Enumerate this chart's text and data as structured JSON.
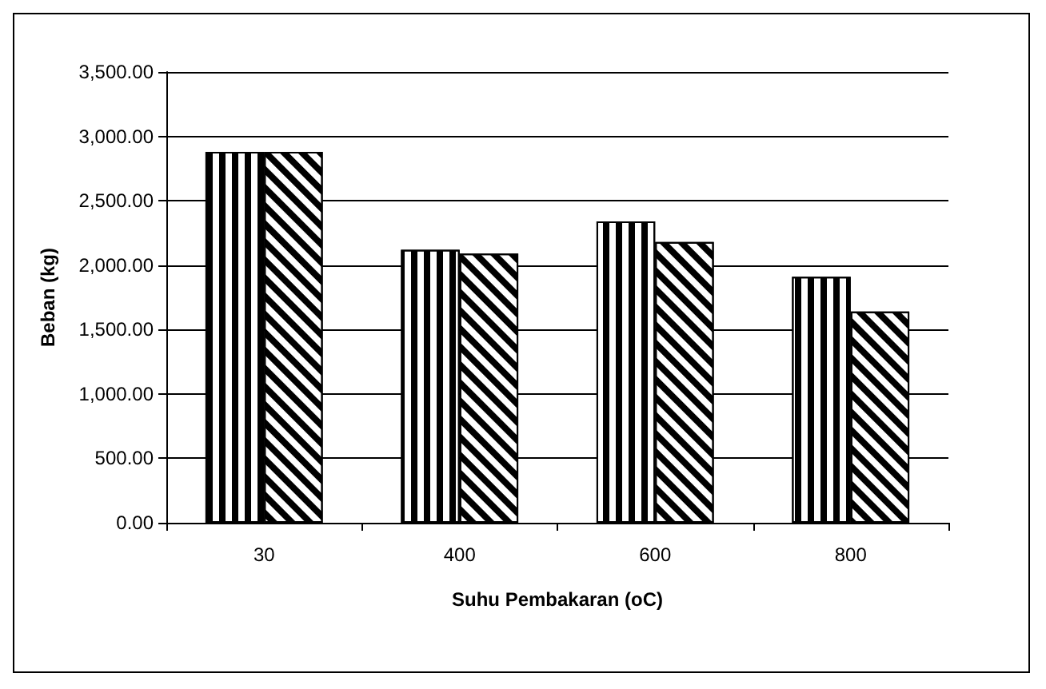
{
  "chart_data": {
    "type": "bar",
    "xlabel": "Suhu Pembakaran (oC)",
    "ylabel": "Beban (kg)",
    "categories": [
      "30",
      "400",
      "600",
      "800"
    ],
    "series": [
      {
        "color": "#000000",
        "values": [
          2880,
          2120,
          2340,
          1910
        ]
      },
      {
        "color": "#000000",
        "values": [
          2880,
          2090,
          2180,
          1640
        ]
      }
    ],
    "ylim": [
      0,
      3500
    ],
    "yticks": [
      {
        "value": 0,
        "label": "0.00"
      },
      {
        "value": 500,
        "label": "500.00"
      },
      {
        "value": 1000,
        "label": "1,000.00"
      },
      {
        "value": 1500,
        "label": "1,500.00"
      },
      {
        "value": 2000,
        "label": "2,000.00"
      },
      {
        "value": 2500,
        "label": "2,500.00"
      },
      {
        "value": 3000,
        "label": "3,000.00"
      },
      {
        "value": 3500,
        "label": "3,500.00"
      }
    ],
    "grid": "y"
  }
}
